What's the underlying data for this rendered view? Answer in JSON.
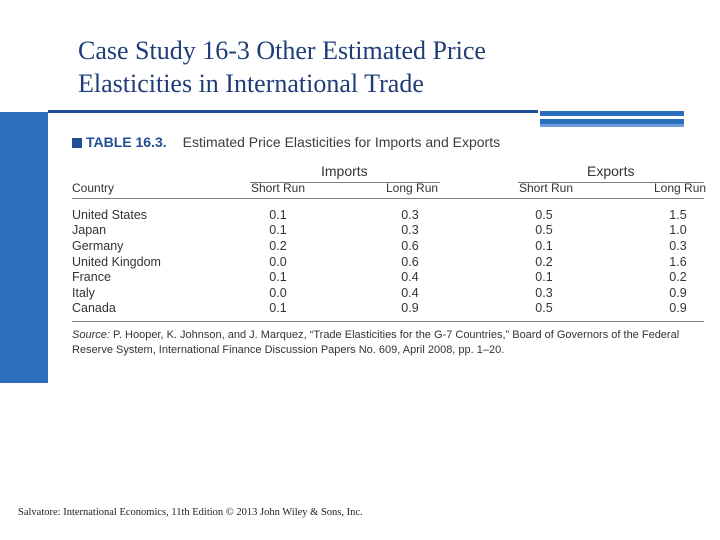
{
  "slide": {
    "title_line1": "Case Study 16-3  Other Estimated Price",
    "title_line2": "Elasticities in International Trade",
    "footer": "Salvatore: International Economics, 11th Edition © 2013 John Wiley & Sons, Inc."
  },
  "table": {
    "label": "TABLE 16.3.",
    "caption": "Estimated Price Elasticities for Imports and Exports",
    "group_imports": "Imports",
    "group_exports": "Exports",
    "col_country": "Country",
    "col_short_run": "Short Run",
    "col_long_run": "Long Run",
    "rows": [
      {
        "country": "United States",
        "imports_short": "0.1",
        "imports_long": "0.3",
        "exports_short": "0.5",
        "exports_long": "1.5"
      },
      {
        "country": "Japan",
        "imports_short": "0.1",
        "imports_long": "0.3",
        "exports_short": "0.5",
        "exports_long": "1.0"
      },
      {
        "country": "Germany",
        "imports_short": "0.2",
        "imports_long": "0.6",
        "exports_short": "0.1",
        "exports_long": "0.3"
      },
      {
        "country": "United Kingdom",
        "imports_short": "0.0",
        "imports_long": "0.6",
        "exports_short": "0.2",
        "exports_long": "1.6"
      },
      {
        "country": "France",
        "imports_short": "0.1",
        "imports_long": "0.4",
        "exports_short": "0.1",
        "exports_long": "0.2"
      },
      {
        "country": "Italy",
        "imports_short": "0.0",
        "imports_long": "0.4",
        "exports_short": "0.3",
        "exports_long": "0.9"
      },
      {
        "country": "Canada",
        "imports_short": "0.1",
        "imports_long": "0.9",
        "exports_short": "0.5",
        "exports_long": "0.9"
      }
    ],
    "source_label": "Source:",
    "source_text": "P. Hooper, K. Johnson, and J. Marquez, “Trade Elasticities for the G-7 Countries,” Board of Governors of the Federal Reserve System, International Finance Discussion Papers No. 609, April 2008, pp. 1–20."
  },
  "colors": {
    "accent_blue": "#2a6ebc",
    "title_blue": "#1f3d78"
  }
}
